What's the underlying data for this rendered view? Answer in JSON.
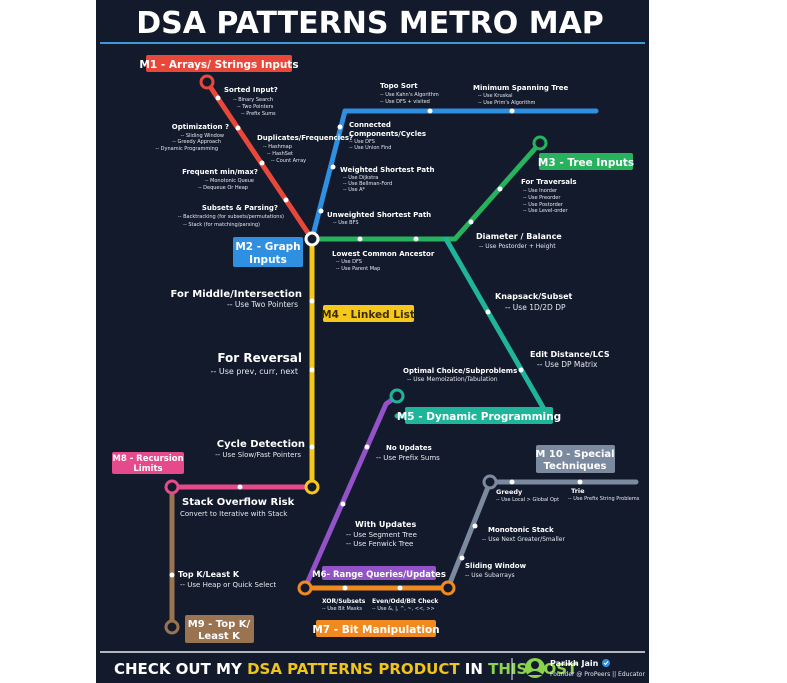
{
  "title": "DSA PATTERNS METRO MAP",
  "colors": {
    "background": "#131a2c",
    "red": "#e8483a",
    "blue": "#2f8fe0",
    "green": "#27b25e",
    "teal": "#1fb59a",
    "yellow": "#f6c81c",
    "purple": "#9352c8",
    "orange": "#f08a20",
    "pink": "#e44a8c",
    "brown": "#9a7350",
    "gray": "#7c8aa0",
    "footer_highlight": "#f0c419",
    "footer_green": "#8bd34c"
  },
  "lines": {
    "m1": "M1 - Arrays/ Strings Inputs",
    "m2": [
      "M2 - Graph",
      "Inputs"
    ],
    "m3": "M3 - Tree Inputs",
    "m4": "M4 - Linked List",
    "m5": "M5 - Dynamic Programming",
    "m6": "M6- Range Queries/Updates",
    "m7": "M7 - Bit Manipulation",
    "m8": [
      "M8 - Recursion",
      "Limits"
    ],
    "m9": [
      "M9 - Top K/",
      "Least K"
    ],
    "m10": [
      "M 10 - Special",
      "Techniques"
    ]
  },
  "stations": {
    "sorted_input": {
      "title": "Sorted Input?",
      "items": [
        "-- Binary Search",
        "-- Two Pointers",
        "-- Prefix Sums"
      ]
    },
    "optimization": {
      "title": "Optimization ?",
      "items": [
        "-- Sliding Window",
        "-- Greedy Approach",
        "-- Dynamic Programming"
      ]
    },
    "duplicates": {
      "title": "Duplicates/Frequencies?",
      "items": [
        "-- Hashmap",
        "-- HashSet",
        "-- Count Array"
      ]
    },
    "frequent_minmax": {
      "title": "Frequent min/max?",
      "items": [
        "-- Monotonic Queue",
        "-- Dequeue Or Heap"
      ]
    },
    "subsets_parsing": {
      "title": "Subsets & Parsing?",
      "items": [
        "-- Backtracking (for subsets/permutations)",
        "-- Stack (for matching/parsing)"
      ]
    },
    "topo_sort": {
      "title": "Topo Sort",
      "items": [
        "-- Use Kahn's Algorithm",
        "-- Use DFS + visited"
      ]
    },
    "mst": {
      "title": "Minimum Spanning Tree",
      "items": [
        "-- Use Kruskal",
        "-- Use Prim's Algorithm"
      ]
    },
    "connected": {
      "title": [
        "Connected",
        "Components/Cycles"
      ],
      "items": [
        "-- Use DFS",
        "-- Use Union Find"
      ]
    },
    "weighted": {
      "title": "Weighted Shortest Path",
      "items": [
        "-- Use Dijkstra",
        "-- Use Bellman-Ford",
        "-- Use A*"
      ]
    },
    "unweighted": {
      "title": "Unweighted Shortest Path",
      "items": [
        "-- Use BFS"
      ]
    },
    "traversals": {
      "title": "For Traversals",
      "items": [
        "-- Use Inorder",
        "-- Use Preorder",
        "-- Use Postorder",
        "-- Use Level-order"
      ]
    },
    "diameter": {
      "title": "Diameter / Balance",
      "items": [
        "-- Use Postorder + Height"
      ]
    },
    "lca": {
      "title": "Lowest Common Ancestor",
      "items": [
        "-- Use DFS",
        "-- Use Parent Map"
      ]
    },
    "knapsack": {
      "title": "Knapsack/Subset",
      "items": [
        "-- Use 1D/2D DP"
      ]
    },
    "edit_distance": {
      "title": "Edit Distance/LCS",
      "items": [
        "-- Use DP Matrix"
      ]
    },
    "optimal_choice": {
      "title": "Optimal Choice/Subproblems",
      "items": [
        "-- Use Memoization/Tabulation"
      ]
    },
    "middle": {
      "title": "For Middle/Intersection",
      "items": [
        "-- Use Two Pointers"
      ]
    },
    "reversal": {
      "title": "For Reversal",
      "items": [
        "-- Use prev, curr, next"
      ]
    },
    "cycle": {
      "title": "Cycle Detection",
      "items": [
        "-- Use Slow/Fast Pointers"
      ]
    },
    "no_updates": {
      "title": "No Updates",
      "items": [
        "-- Use Prefix Sums"
      ]
    },
    "with_updates": {
      "title": "With Updates",
      "items": [
        "-- Use Segment Tree",
        "-- Use Fenwick Tree"
      ]
    },
    "stack_overflow": {
      "title": "Stack Overflow Risk",
      "items": [
        "Convert to Iterative with Stack"
      ]
    },
    "topk": {
      "title": "Top K/Least K",
      "items": [
        "-- Use Heap or Quick Select"
      ]
    },
    "greedy": {
      "title": "Greedy",
      "items": [
        "-- Use Local > Global Opt"
      ]
    },
    "trie": {
      "title": "Trie",
      "items": [
        "-- Use Prefix String Problems"
      ]
    },
    "monotonic_stack": {
      "title": "Monotonic Stack",
      "items": [
        "-- Use Next Greater/Smaller"
      ]
    },
    "sliding_window": {
      "title": "Sliding Window",
      "items": [
        "-- Use Subarrays"
      ]
    },
    "xor": {
      "title": "XOR/Subsets",
      "items": [
        "-- Use Bit Masks"
      ]
    },
    "even_odd": {
      "title": "Even/Odd/Bit Check",
      "items": [
        "-- Use &, |, ^, ~, <<, >>"
      ]
    }
  },
  "footer": {
    "cta_pre": "CHECK OUT MY ",
    "cta_highlight": "DSA PATTERNS PRODUCT",
    "cta_mid": " IN ",
    "cta_highlight2": "THIS POST",
    "author_name": "Parikh Jain",
    "author_role": "Founder @ ProPeers || Educator",
    "verified_icon": "verified-badge-icon",
    "avatar_icon": "person-avatar-icon"
  }
}
